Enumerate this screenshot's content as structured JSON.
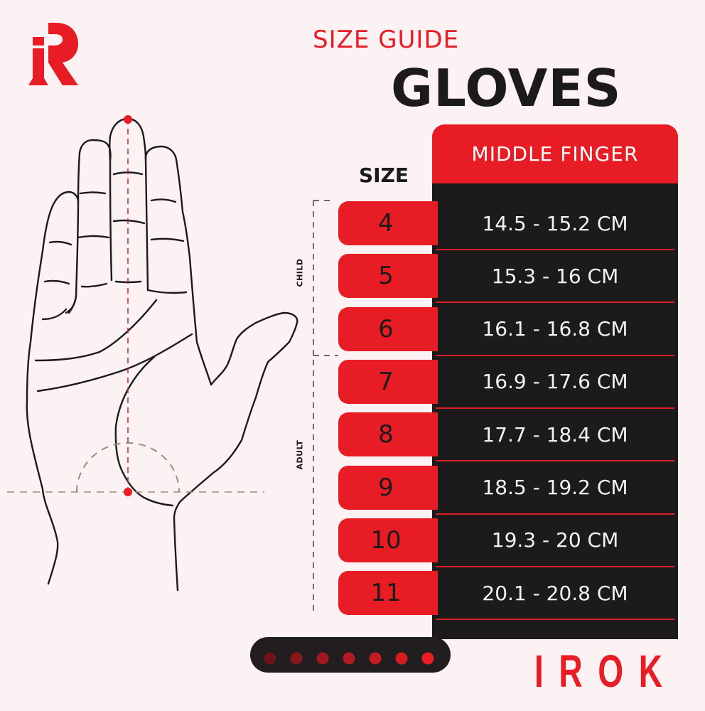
{
  "header": {
    "logo_text": "iR",
    "subtitle": "SIZE GUIDE",
    "title": "GLOVES"
  },
  "table": {
    "size_header": "SIZE",
    "measure_header": "MIDDLE FINGER",
    "groups": [
      {
        "label": "CHILD"
      },
      {
        "label": "ADULT"
      }
    ],
    "rows": [
      {
        "size": "4",
        "range": "14.5 - 15.2 CM"
      },
      {
        "size": "5",
        "range": "15.3 - 16 CM"
      },
      {
        "size": "6",
        "range": "16.1 - 16.8 CM"
      },
      {
        "size": "7",
        "range": "16.9 - 17.6 CM"
      },
      {
        "size": "8",
        "range": "17.7 - 18.4 CM"
      },
      {
        "size": "9",
        "range": "18.5 - 19.2 CM"
      },
      {
        "size": "10",
        "range": "19.3 - 20 CM"
      },
      {
        "size": "11",
        "range": "20.1 - 20.8 CM"
      }
    ]
  },
  "brand": {
    "name": "IROK"
  },
  "colors": {
    "accent": "#e81c24",
    "dark": "#1c1a1b",
    "background": "#fcf1f3"
  }
}
